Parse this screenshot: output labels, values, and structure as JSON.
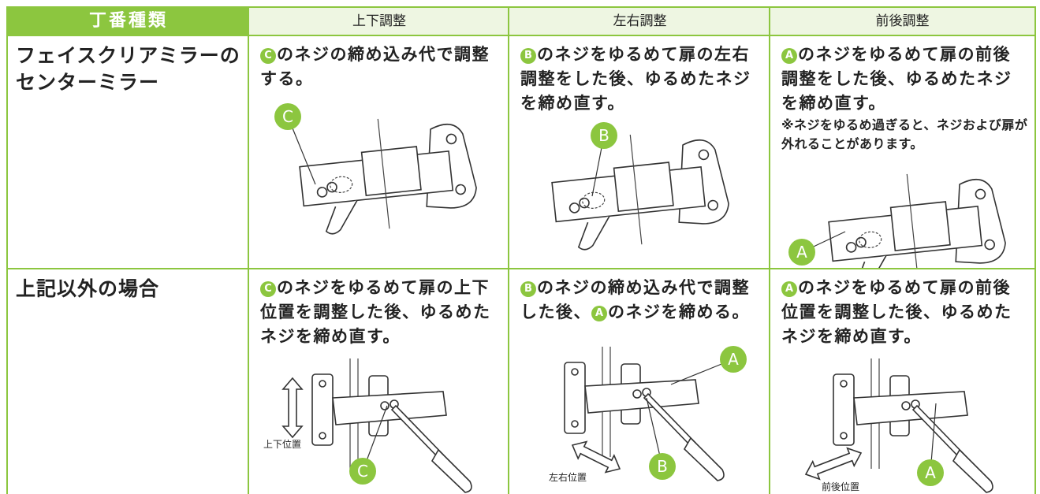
{
  "table": {
    "header": [
      "丁番種類",
      "上下調整",
      "左右調整",
      "前後調整"
    ],
    "rows": [
      {
        "type_lines": [
          "フェイスクリアミラーの",
          "センターミラー"
        ],
        "cells": [
          {
            "parts": [
              {
                "badge": "C"
              },
              {
                "text": "のネジの締め込み代で調整する。"
              }
            ],
            "callouts": [
              "C"
            ]
          },
          {
            "parts": [
              {
                "badge": "B"
              },
              {
                "text": "のネジをゆるめて扉の左右調整をした後、ゆるめたネジを締め直す。"
              }
            ],
            "callouts": [
              "B"
            ]
          },
          {
            "parts": [
              {
                "badge": "A"
              },
              {
                "text": "のネジをゆるめて扉の前後調整をした後、ゆるめたネジを締め直す。"
              }
            ],
            "note": "※ネジをゆるめ過ぎると、ネジおよび扉が外れることがあります。",
            "callouts": [
              "A"
            ]
          }
        ]
      },
      {
        "type_lines": [
          "上記以外の場合"
        ],
        "cells": [
          {
            "parts": [
              {
                "badge": "C"
              },
              {
                "text": "のネジをゆるめて扉の上下位置を調整した後、ゆるめたネジを締め直す。"
              }
            ],
            "callouts": [
              "C"
            ],
            "caption": "上下位置"
          },
          {
            "parts": [
              {
                "badge": "B"
              },
              {
                "text": "のネジの締め込み代で調整した後、"
              },
              {
                "badge": "A"
              },
              {
                "text": "のネジを締める。"
              }
            ],
            "callouts": [
              "A",
              "B"
            ],
            "caption": "左右位置"
          },
          {
            "parts": [
              {
                "badge": "A"
              },
              {
                "text": "のネジをゆるめて扉の前後位置を調整した後、ゆるめたネジを締め直す。"
              }
            ],
            "callouts": [
              "A"
            ],
            "caption": "前後位置"
          }
        ]
      }
    ]
  }
}
